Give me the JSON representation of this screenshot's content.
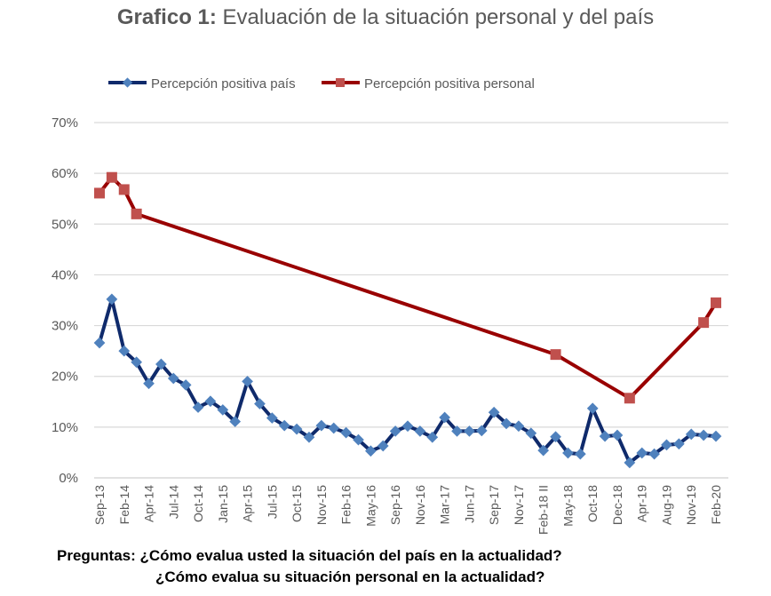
{
  "title": {
    "prefix": "Grafico 1:",
    "text": " Evaluación de la situación personal y del país"
  },
  "colors": {
    "pais_line": "#0f2a6b",
    "pais_marker": "#4f81bd",
    "personal_line": "#990000",
    "personal_marker": "#c0504d",
    "grid": "#d9d9d9",
    "axis": "#d9d9d9",
    "text": "#595959"
  },
  "chart_data": {
    "type": "line",
    "title": "Grafico 1: Evaluación de la situación personal y del país",
    "xlabel": "",
    "ylabel": "",
    "ylim": [
      0,
      70
    ],
    "yticks": [
      "0%",
      "10%",
      "20%",
      "30%",
      "40%",
      "50%",
      "60%",
      "70%"
    ],
    "ytick_values": [
      0,
      10,
      20,
      30,
      40,
      50,
      60,
      70
    ],
    "grid": true,
    "legend_position": "top",
    "category_count": 51,
    "tick_labels": [
      {
        "index": 0,
        "label": "Sep-13"
      },
      {
        "index": 2,
        "label": "Feb-14"
      },
      {
        "index": 4,
        "label": "Apr-14"
      },
      {
        "index": 6,
        "label": "Jul-14"
      },
      {
        "index": 8,
        "label": "Oct-14"
      },
      {
        "index": 10,
        "label": "Jan-15"
      },
      {
        "index": 12,
        "label": "Apr-15"
      },
      {
        "index": 14,
        "label": "Jul-15"
      },
      {
        "index": 16,
        "label": "Oct-15"
      },
      {
        "index": 18,
        "label": "Nov-15"
      },
      {
        "index": 20,
        "label": "Feb-16"
      },
      {
        "index": 22,
        "label": "May-16"
      },
      {
        "index": 24,
        "label": "Sep-16"
      },
      {
        "index": 26,
        "label": "Nov-16"
      },
      {
        "index": 28,
        "label": "Mar-17"
      },
      {
        "index": 30,
        "label": "Jun-17"
      },
      {
        "index": 32,
        "label": "Sep-17"
      },
      {
        "index": 34,
        "label": "Nov-17"
      },
      {
        "index": 36,
        "label": "Feb-18 II"
      },
      {
        "index": 38,
        "label": "May-18"
      },
      {
        "index": 40,
        "label": "Oct-18"
      },
      {
        "index": 42,
        "label": "Dec-18"
      },
      {
        "index": 44,
        "label": "Apr-19"
      },
      {
        "index": 46,
        "label": "Aug-19"
      },
      {
        "index": 48,
        "label": "Nov-19"
      },
      {
        "index": 50,
        "label": "Feb-20"
      }
    ],
    "series": [
      {
        "name": "Percepción positiva país",
        "marker": "diamond",
        "points": [
          [
            0,
            26.6
          ],
          [
            1,
            35.2
          ],
          [
            2,
            25.0
          ],
          [
            3,
            22.8
          ],
          [
            4,
            18.6
          ],
          [
            5,
            22.4
          ],
          [
            6,
            19.6
          ],
          [
            7,
            18.3
          ],
          [
            8,
            13.9
          ],
          [
            9,
            15.1
          ],
          [
            10,
            13.4
          ],
          [
            11,
            11.1
          ],
          [
            12,
            19.0
          ],
          [
            13,
            14.6
          ],
          [
            14,
            11.8
          ],
          [
            15,
            10.3
          ],
          [
            16,
            9.6
          ],
          [
            17,
            8.0
          ],
          [
            18,
            10.3
          ],
          [
            19,
            9.8
          ],
          [
            20,
            8.9
          ],
          [
            21,
            7.5
          ],
          [
            22,
            5.3
          ],
          [
            23,
            6.3
          ],
          [
            24,
            9.2
          ],
          [
            25,
            10.2
          ],
          [
            26,
            9.2
          ],
          [
            27,
            8.0
          ],
          [
            28,
            11.9
          ],
          [
            29,
            9.2
          ],
          [
            30,
            9.2
          ],
          [
            31,
            9.3
          ],
          [
            32,
            12.9
          ],
          [
            33,
            10.7
          ],
          [
            34,
            10.2
          ],
          [
            35,
            8.8
          ],
          [
            36,
            5.4
          ],
          [
            37,
            8.1
          ],
          [
            38,
            4.9
          ],
          [
            39,
            4.7
          ],
          [
            40,
            13.7
          ],
          [
            41,
            8.2
          ],
          [
            42,
            8.4
          ],
          [
            43,
            3.0
          ],
          [
            44,
            4.9
          ],
          [
            45,
            4.7
          ],
          [
            46,
            6.5
          ],
          [
            47,
            6.7
          ],
          [
            48,
            8.6
          ],
          [
            49,
            8.4
          ],
          [
            50,
            8.2
          ]
        ]
      },
      {
        "name": "Percepción positiva personal",
        "marker": "square",
        "points": [
          [
            0,
            56.1
          ],
          [
            1,
            59.2
          ],
          [
            2,
            56.8
          ],
          [
            3,
            52.0
          ],
          [
            37,
            24.3
          ],
          [
            43,
            15.7
          ],
          [
            49,
            30.6
          ],
          [
            50,
            34.5
          ]
        ]
      }
    ]
  },
  "footer": {
    "question_1": "Preguntas:  ¿Cómo evalua usted la situación del país en la actualidad?",
    "question_2": "¿Cómo evalua su situación personal en la actualidad?"
  }
}
